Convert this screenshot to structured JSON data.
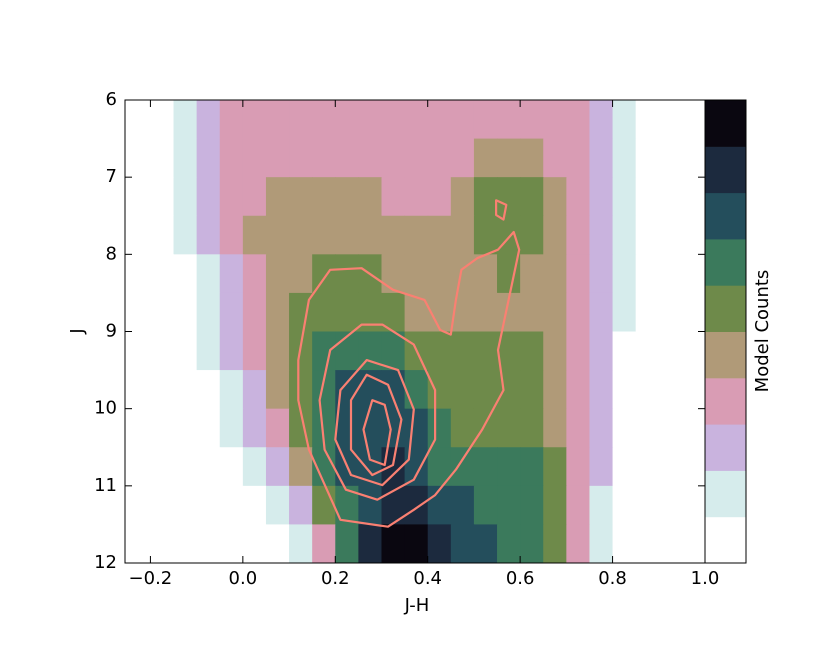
{
  "chart_data": {
    "type": "heatmap",
    "xlabel": "J-H",
    "ylabel": "J",
    "colorbar_label": "Model Counts",
    "xlim": [
      -0.255,
      1.0
    ],
    "ylim": [
      6,
      12
    ],
    "y_inverted": true,
    "xticks": [
      {
        "value": -0.2,
        "label": "−0.2"
      },
      {
        "value": 0,
        "label": "0.0"
      },
      0.2,
      0.4,
      0.6,
      0.8,
      {
        "value": 1.0,
        "label": "1.0"
      }
    ],
    "yticks": [
      6,
      7,
      8,
      9,
      10,
      11,
      12
    ],
    "xbins": [
      -0.25,
      -0.2,
      -0.15,
      -0.1,
      -0.05,
      0,
      0.05,
      0.1,
      0.15,
      0.2,
      0.25,
      0.3,
      0.35,
      0.4,
      0.45,
      0.5,
      0.55,
      0.6,
      0.65,
      0.7,
      0.75,
      0.8,
      0.85,
      0.9,
      0.95,
      1.0
    ],
    "ybins": [
      6,
      6.5,
      7,
      7.5,
      8,
      8.5,
      9,
      9.5,
      10,
      10.5,
      11,
      11.5,
      12
    ],
    "zlim": [
      0,
      9
    ],
    "colormap": [
      "#ffffff",
      "#d6ecec",
      "#c9b3de",
      "#d99cb4",
      "#b09a78",
      "#6e8a4a",
      "#3b7a5c",
      "#244e5c",
      "#1c2a3e",
      "#0a0710"
    ],
    "z": [
      [
        0,
        0,
        1,
        2,
        3,
        3,
        3,
        3,
        3,
        3,
        3,
        3,
        3,
        3,
        3,
        3,
        3,
        3,
        3,
        3,
        2,
        1,
        0,
        0,
        0
      ],
      [
        0,
        0,
        1,
        2,
        3,
        3,
        3,
        3,
        3,
        3,
        3,
        3,
        3,
        3,
        3,
        4,
        4,
        4,
        3,
        3,
        2,
        1,
        0,
        0,
        0
      ],
      [
        0,
        0,
        1,
        2,
        3,
        3,
        4,
        4,
        4,
        4,
        4,
        3,
        3,
        3,
        4,
        5,
        5,
        5,
        4,
        3,
        2,
        1,
        0,
        0,
        0
      ],
      [
        0,
        0,
        1,
        2,
        3,
        4,
        4,
        4,
        4,
        4,
        4,
        4,
        4,
        4,
        4,
        5,
        5,
        5,
        4,
        3,
        2,
        1,
        0,
        0,
        0
      ],
      [
        0,
        0,
        0,
        1,
        2,
        3,
        4,
        4,
        5,
        5,
        5,
        4,
        4,
        4,
        4,
        4,
        5,
        4,
        4,
        3,
        2,
        1,
        0,
        0,
        0
      ],
      [
        0,
        0,
        0,
        1,
        2,
        3,
        4,
        5,
        5,
        5,
        5,
        5,
        4,
        4,
        4,
        4,
        4,
        4,
        4,
        3,
        2,
        1,
        0,
        0,
        0
      ],
      [
        0,
        0,
        0,
        1,
        2,
        3,
        4,
        5,
        6,
        6,
        6,
        6,
        5,
        5,
        5,
        5,
        5,
        5,
        4,
        3,
        2,
        0,
        0,
        0,
        0
      ],
      [
        0,
        0,
        0,
        0,
        1,
        2,
        4,
        5,
        6,
        7,
        7,
        7,
        6,
        5,
        5,
        5,
        5,
        5,
        4,
        3,
        2,
        0,
        0,
        0,
        0
      ],
      [
        0,
        0,
        0,
        0,
        1,
        2,
        3,
        5,
        6,
        7,
        7,
        7,
        7,
        6,
        5,
        5,
        5,
        5,
        4,
        3,
        2,
        0,
        0,
        0,
        0
      ],
      [
        0,
        0,
        0,
        0,
        0,
        1,
        2,
        4,
        6,
        7,
        7,
        8,
        7,
        6,
        6,
        6,
        6,
        6,
        5,
        3,
        2,
        0,
        0,
        0,
        0
      ],
      [
        0,
        0,
        0,
        0,
        0,
        0,
        1,
        2,
        5,
        6,
        7,
        8,
        8,
        7,
        7,
        6,
        6,
        6,
        5,
        3,
        1,
        0,
        0,
        0,
        0
      ],
      [
        0,
        0,
        0,
        0,
        0,
        0,
        0,
        1,
        3,
        6,
        8,
        9,
        9,
        8,
        7,
        7,
        6,
        6,
        5,
        3,
        1,
        0,
        0,
        0,
        0
      ]
    ],
    "contour_color": "#fa8072",
    "contours": [
      {
        "x": [
          0.314,
          0.211,
          0.143,
          0.12,
          0.12,
          0.143,
          0.189,
          0.257,
          0.325,
          0.393,
          0.427,
          0.45,
          0.461,
          0.473,
          0.507,
          0.552,
          0.586,
          0.598,
          0.575,
          0.552,
          0.564,
          0.518,
          0.461,
          0.416,
          0.37
        ],
        "y": [
          11.53,
          11.44,
          10.53,
          9.89,
          9.37,
          8.59,
          8.2,
          8.18,
          8.46,
          8.59,
          8.98,
          9.04,
          8.59,
          8.2,
          8.05,
          7.94,
          7.71,
          7.94,
          8.59,
          9.24,
          9.76,
          10.27,
          10.79,
          11.12,
          11.31
        ]
      },
      {
        "x": [
          0.548,
          0.57,
          0.564,
          0.548
        ],
        "y": [
          7.3,
          7.36,
          7.55,
          7.49
        ]
      },
      {
        "x": [
          0.257,
          0.189,
          0.166,
          0.177,
          0.223,
          0.291,
          0.37,
          0.416,
          0.416,
          0.37,
          0.302
        ],
        "y": [
          8.91,
          9.24,
          9.89,
          10.53,
          11.05,
          11.18,
          10.92,
          10.4,
          9.76,
          9.17,
          8.91
        ]
      },
      {
        "x": [
          0.268,
          0.211,
          0.2,
          0.234,
          0.302,
          0.359,
          0.37,
          0.336
        ],
        "y": [
          9.37,
          9.76,
          10.4,
          10.86,
          10.99,
          10.66,
          10.01,
          9.5
        ]
      },
      {
        "x": [
          0.268,
          0.234,
          0.234,
          0.28,
          0.325,
          0.343,
          0.314
        ],
        "y": [
          9.56,
          9.89,
          10.53,
          10.86,
          10.73,
          10.14,
          9.69
        ]
      },
      {
        "x": [
          0.28,
          0.261,
          0.275,
          0.307,
          0.32,
          0.307
        ],
        "y": [
          9.89,
          10.27,
          10.66,
          10.73,
          10.27,
          9.95
        ]
      }
    ]
  }
}
